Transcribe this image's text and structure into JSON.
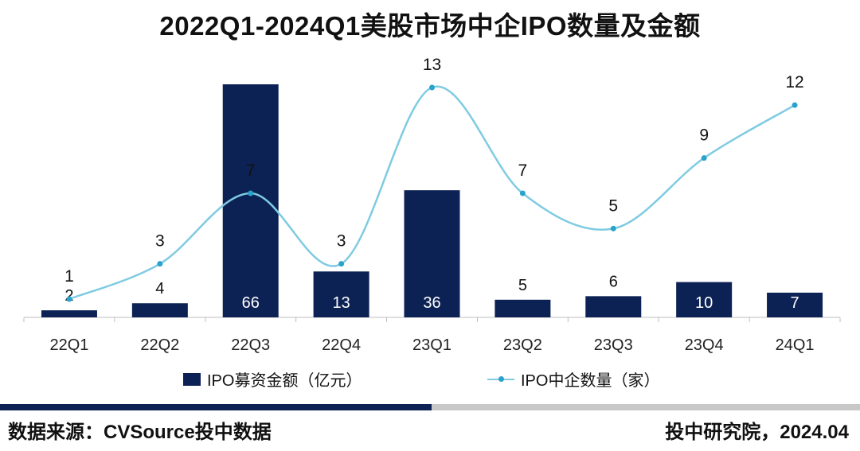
{
  "chart_data": {
    "type": "bar+line",
    "title": "2022Q1-2024Q1美股市场中企IPO数量及金额",
    "categories": [
      "22Q1",
      "22Q2",
      "22Q3",
      "22Q4",
      "23Q1",
      "23Q2",
      "23Q3",
      "23Q4",
      "24Q1"
    ],
    "series": [
      {
        "name": "IPO募资金额（亿元）",
        "type": "bar",
        "color": "#0d2254",
        "values": [
          2,
          4,
          66,
          13,
          36,
          5,
          6,
          10,
          7
        ]
      },
      {
        "name": "IPO中企数量（家）",
        "type": "line",
        "color": "#7fcbe2",
        "marker_color": "#2aa3cc",
        "values": [
          1,
          3,
          7,
          3,
          13,
          7,
          5,
          9,
          12
        ]
      }
    ],
    "bar_axis_range": [
      0,
      66
    ],
    "line_axis_range": [
      -2,
      13
    ],
    "legend_position": "bottom"
  },
  "legend": {
    "bar_label": "IPO募资金额（亿元）",
    "line_label": "IPO中企数量（家）"
  },
  "footer": {
    "source": "数据来源：CVSource投中数据",
    "publisher": "投中研究院，2024.04"
  }
}
